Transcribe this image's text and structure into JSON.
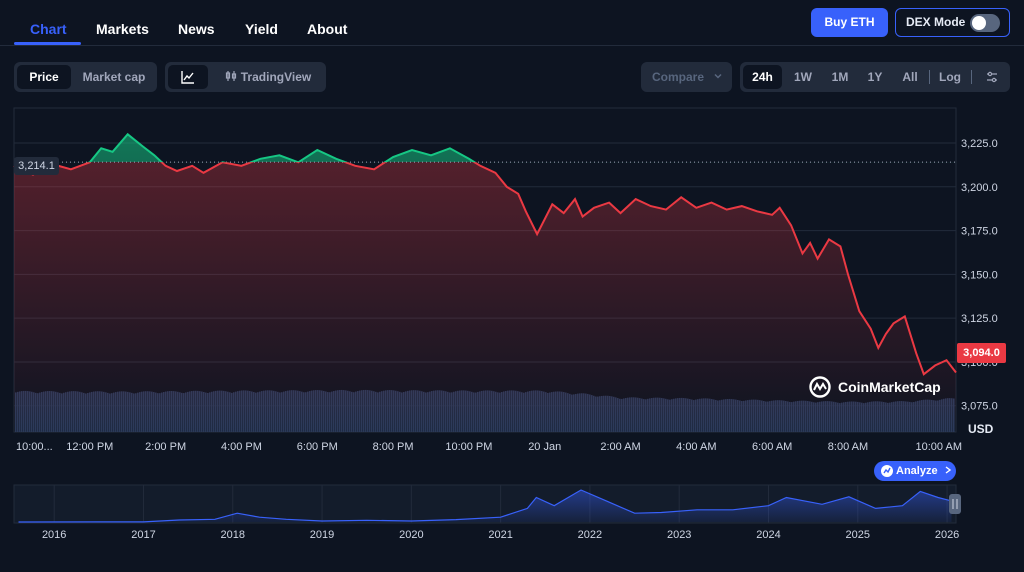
{
  "nav": {
    "tabs": [
      {
        "label": "Chart",
        "active": true
      },
      {
        "label": "Markets"
      },
      {
        "label": "News"
      },
      {
        "label": "Yield"
      },
      {
        "label": "About"
      }
    ],
    "buy_label": "Buy ETH",
    "dex_label": "DEX Mode",
    "dex_enabled": false
  },
  "toolbar": {
    "metric_tabs": [
      {
        "label": "Price",
        "active": true
      },
      {
        "label": "Market cap"
      }
    ],
    "line_icon": "line-chart-icon",
    "tradingview_label": "TradingView",
    "tradingview_icon": "candlestick-icon",
    "compare_label": "Compare",
    "ranges": [
      "24h",
      "1W",
      "1M",
      "1Y",
      "All"
    ],
    "active_range": "24h",
    "log_label": "Log",
    "settings_icon": "sliders-icon"
  },
  "chart_data": [
    {
      "type": "line",
      "title": "",
      "currency": "USD",
      "open_price_label": "3,214.1",
      "open_price": 3214.1,
      "current_price_label": "3,094.0",
      "current_price": 3094.0,
      "ylim": [
        3060,
        3245
      ],
      "y_ticks": [
        "3,225.0",
        "3,200.0",
        "3,175.0",
        "3,150.0",
        "3,125.0",
        "3,100.0",
        "3,075.0"
      ],
      "y_tick_values": [
        3225,
        3200,
        3175,
        3150,
        3125,
        3100,
        3075
      ],
      "x_ticks": [
        "10:00...",
        "12:00 PM",
        "2:00 PM",
        "4:00 PM",
        "6:00 PM",
        "8:00 PM",
        "10:00 PM",
        "20 Jan",
        "2:00 AM",
        "4:00 AM",
        "6:00 AM",
        "8:00 AM",
        "10:00 AM"
      ],
      "x_tick_hours": [
        0,
        2,
        4,
        6,
        8,
        10,
        12,
        14,
        16,
        18,
        20,
        22,
        24
      ],
      "series": [
        {
          "hours": [
            0,
            0.5,
            1,
            1.5,
            2,
            2.3,
            2.6,
            3,
            3.4,
            3.7,
            4,
            4.3,
            4.7,
            5,
            5.5,
            6,
            6.5,
            7,
            7.5,
            8,
            8.5,
            9,
            9.5,
            10,
            10.5,
            11,
            11.5,
            12,
            12.3,
            12.7,
            13,
            13.3,
            13.5,
            13.8,
            14.2,
            14.5,
            14.8,
            15,
            15.3,
            15.7,
            16,
            16.4,
            16.8,
            17.2,
            17.6,
            18,
            18.4,
            18.8,
            19.2,
            19.6,
            20,
            20.2,
            20.5,
            20.8,
            21,
            21.2,
            21.5,
            21.8,
            22,
            22.3,
            22.6,
            22.8,
            23,
            23.2,
            23.5,
            23.8,
            24,
            24.3,
            24.6,
            24.85
          ],
          "values": [
            3212,
            3207,
            3213,
            3210,
            3214,
            3222,
            3220,
            3230,
            3223,
            3218,
            3212,
            3209,
            3212,
            3208,
            3214,
            3212,
            3216,
            3218,
            3214,
            3221,
            3216,
            3212,
            3210,
            3217,
            3221,
            3218,
            3222,
            3216,
            3212,
            3208,
            3200,
            3196,
            3186,
            3173,
            3190,
            3185,
            3193,
            3183,
            3188,
            3191,
            3185,
            3193,
            3189,
            3187,
            3194,
            3188,
            3191,
            3187,
            3189,
            3186,
            3184,
            3188,
            3178,
            3162,
            3168,
            3159,
            3170,
            3166,
            3150,
            3129,
            3119,
            3108,
            3116,
            3122,
            3126,
            3105,
            3093,
            3098,
            3101,
            3094
          ]
        }
      ],
      "volume": {
        "unit": "relative",
        "hours": [
          0,
          3,
          6,
          9,
          12,
          14,
          15,
          16,
          18,
          20,
          22,
          23.5,
          24.6
        ],
        "values": [
          0.85,
          0.84,
          0.86,
          0.87,
          0.86,
          0.86,
          0.8,
          0.72,
          0.7,
          0.66,
          0.63,
          0.64,
          0.7
        ]
      }
    },
    {
      "type": "area",
      "title": "",
      "x_ticks": [
        "2016",
        "2017",
        "2018",
        "2019",
        "2020",
        "2021",
        "2022",
        "2023",
        "2024",
        "2025",
        "2026"
      ],
      "x_tick_years": [
        2016,
        2017,
        2018,
        2019,
        2020,
        2021,
        2022,
        2023,
        2024,
        2025,
        2026
      ],
      "ylim": [
        0,
        5000
      ],
      "series": [
        {
          "years": [
            2015.6,
            2016.5,
            2017.0,
            2017.4,
            2017.8,
            2018.05,
            2018.3,
            2018.6,
            2019.0,
            2019.5,
            2020.0,
            2020.5,
            2021.0,
            2021.3,
            2021.4,
            2021.6,
            2021.9,
            2022.2,
            2022.5,
            2022.8,
            2023.2,
            2023.6,
            2024.0,
            2024.2,
            2024.6,
            2024.9,
            2025.2,
            2025.5,
            2025.7,
            2025.9,
            2026.05
          ],
          "values": [
            2,
            10,
            10,
            300,
            400,
            1300,
            700,
            400,
            140,
            250,
            150,
            350,
            700,
            2000,
            3600,
            2400,
            4700,
            3000,
            1300,
            1400,
            1800,
            1800,
            2400,
            3600,
            2600,
            3700,
            2000,
            2400,
            4500,
            3600,
            3100
          ]
        }
      ]
    }
  ],
  "watermark": "CoinMarketCap",
  "axis_unit_label": "USD",
  "analyze_label": "Analyze",
  "colors": {
    "accent": "#3861fb",
    "up": "#16c784",
    "down": "#ea3943",
    "background": "#0d1421"
  }
}
